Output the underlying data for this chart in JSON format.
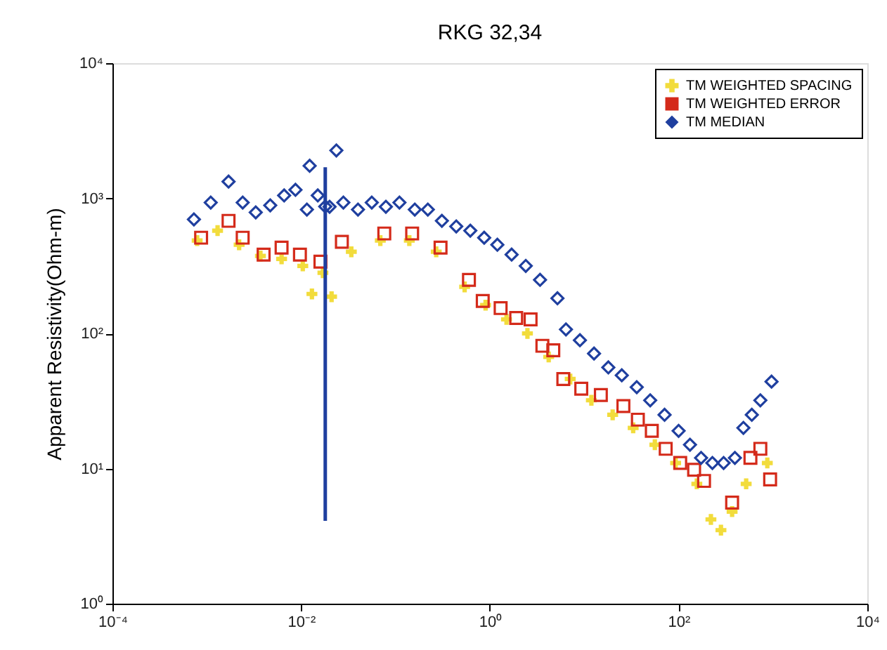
{
  "chart_data": {
    "type": "scatter",
    "title": "RKG 32,34",
    "ylabel": "Apparent Resistivity(Ohm-m)",
    "log": "xy",
    "grid": false,
    "legend": "top right",
    "xlim": [
      0.0001,
      10000
    ],
    "ylim": [
      1,
      10000
    ],
    "xticks": [
      {
        "value": 0.0001,
        "label": "10⁻⁴"
      },
      {
        "value": 0.01,
        "label": "10⁻²"
      },
      {
        "value": 1,
        "label": "10⁰"
      },
      {
        "value": 100,
        "label": "10²"
      },
      {
        "value": 10000,
        "label": "10⁴"
      }
    ],
    "yticks": [
      {
        "value": 1,
        "label": "10⁰"
      },
      {
        "value": 10,
        "label": "10¹"
      },
      {
        "value": 100,
        "label": "10²"
      },
      {
        "value": 1000,
        "label": "10³"
      },
      {
        "value": 10000,
        "label": "10⁴"
      }
    ],
    "series": [
      {
        "name": "TM WEIGHTED SPACING",
        "color": "#f2dc3c",
        "marker": "cross",
        "x": [
          0.00079,
          0.0013,
          0.0022,
          0.0037,
          0.0062,
          0.0104,
          0.013,
          0.017,
          0.021,
          0.034,
          0.069,
          0.14,
          0.27,
          0.54,
          0.9,
          1.5,
          2.5,
          4.2,
          7.1,
          11.9,
          20,
          33,
          56,
          93,
          156,
          220,
          281,
          369,
          520,
          871
        ],
        "values": [
          487,
          576,
          453,
          374,
          356,
          316,
          196,
          281,
          187,
          402,
          487,
          487,
          402,
          221,
          162,
          127,
          100,
          67,
          46,
          32,
          25,
          20,
          15,
          11,
          7.7,
          4.2,
          3.5,
          4.8,
          7.7,
          11
        ]
      },
      {
        "name": "TM WEIGHTED ERROR",
        "color": "#d42a1a",
        "marker": "square",
        "x": [
          0.00087,
          0.0017,
          0.0024,
          0.004,
          0.0062,
          0.0097,
          0.016,
          0.027,
          0.076,
          0.15,
          0.3,
          0.6,
          0.84,
          1.3,
          1.9,
          2.7,
          3.6,
          4.7,
          6.0,
          9.3,
          15,
          26,
          37,
          52,
          73,
          104,
          146,
          186,
          369,
          577,
          735,
          933
        ],
        "values": [
          511,
          681,
          511,
          383,
          432,
          383,
          340,
          476,
          549,
          549,
          432,
          249,
          174,
          154,
          130,
          127,
          81,
          75,
          46,
          39,
          35,
          29,
          23,
          19,
          14,
          11,
          9.8,
          8.1,
          5.6,
          12,
          14,
          8.3
        ]
      },
      {
        "name": "TM MEDIAN",
        "color": "#1f3f9f",
        "marker": "diamond",
        "x": [
          0.00073,
          0.0011,
          0.0017,
          0.0024,
          0.0033,
          0.0047,
          0.0066,
          0.0087,
          0.0115,
          0.0123,
          0.015,
          0.018,
          0.02,
          0.0236,
          0.028,
          0.04,
          0.056,
          0.079,
          0.11,
          0.16,
          0.22,
          0.31,
          0.44,
          0.62,
          0.87,
          1.2,
          1.7,
          2.4,
          3.4,
          5.2,
          6.4,
          9.0,
          12.7,
          18,
          25,
          36,
          50,
          71,
          100,
          132,
          173,
          228,
          300,
          395,
          486,
          597,
          735,
          966
        ],
        "values": [
          698,
          930,
          1330,
          930,
          787,
          887,
          1050,
          1155,
          825,
          1740,
          1050,
          870,
          866,
          2260,
          930,
          825,
          930,
          866,
          930,
          825,
          825,
          681,
          619,
          576,
          511,
          453,
          383,
          316,
          249,
          182,
          107,
          89,
          71,
          56,
          49,
          40,
          32,
          25,
          19,
          15,
          12,
          11,
          11,
          12,
          20,
          25,
          32,
          44
        ],
        "errors": [
          null,
          null,
          null,
          null,
          null,
          null,
          null,
          null,
          null,
          null,
          null,
          [
            4.1,
            1700
          ],
          null,
          null,
          null,
          null,
          null,
          null,
          null,
          null,
          null,
          null,
          null,
          null,
          null,
          null,
          null,
          null,
          null,
          null,
          null,
          null,
          null,
          null,
          null,
          null,
          null,
          null,
          null,
          null,
          null,
          null,
          null,
          null,
          null,
          null,
          null,
          null
        ]
      }
    ]
  }
}
